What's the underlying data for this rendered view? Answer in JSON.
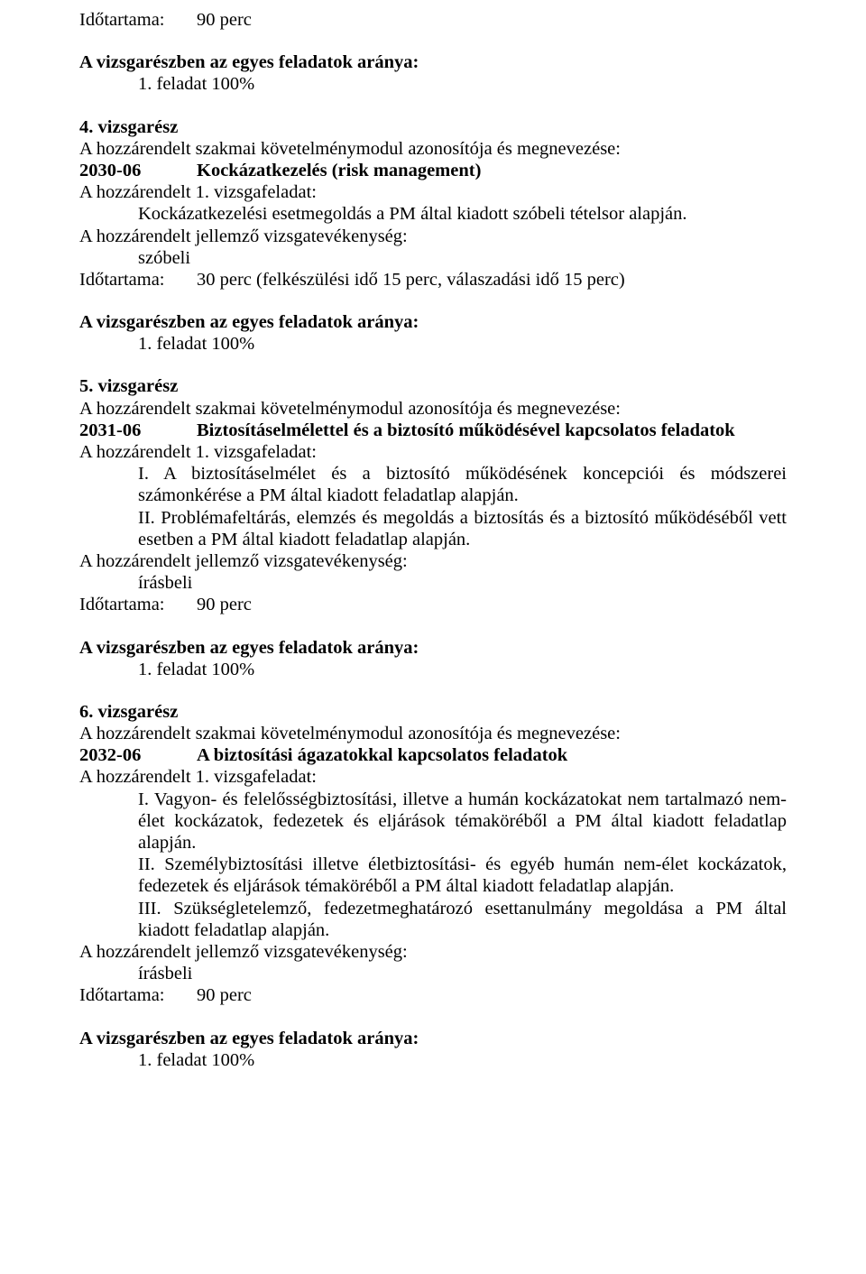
{
  "typography": {
    "font_family": "Times New Roman",
    "font_size_pt": 15,
    "text_color": "#000000",
    "background_color": "#ffffff"
  },
  "top": {
    "duration_label": "Időtartama:",
    "duration_value": "90 perc"
  },
  "ratio_heading": "A vizsgarészben az egyes feladatok aránya:",
  "ratio_line": "1. feladat 100%",
  "module_intro": "A hozzárendelt szakmai követelménymodul azonosítója és megnevezése:",
  "task_line": "A hozzárendelt 1. vizsgafeladat:",
  "activity_line": "A hozzárendelt jellemző vizsgatevékenység:",
  "activity_oral": "szóbeli",
  "activity_written": "írásbeli",
  "duration_label": "Időtartama:",
  "s4": {
    "heading": "4. vizsgarész",
    "code": "2030-06",
    "title": "Kockázatkezelés (risk management)",
    "task_desc": "Kockázatkezelési esetmegoldás a PM által kiadott szóbeli tételsor alapján.",
    "duration_value": "30 perc (felkészülési idő 15 perc, válaszadási idő 15 perc)"
  },
  "s5": {
    "heading": "5. vizsgarész",
    "code": "2031-06",
    "title": "Biztosításelmélettel és a biztosító működésével kapcsolatos feladatok",
    "task_desc_1": "I. A biztosításelmélet és a biztosító működésének koncepciói és módszerei számonkérése a PM által kiadott feladatlap alapján.",
    "task_desc_2": "II. Problémafeltárás, elemzés és megoldás a biztosítás és a biztosító működéséből vett esetben a PM által kiadott feladatlap alapján.",
    "duration_value": "90 perc"
  },
  "s6": {
    "heading": "6. vizsgarész",
    "code": "2032-06",
    "title": "A biztosítási ágazatokkal kapcsolatos feladatok",
    "task_desc_1": "I. Vagyon- és felelősségbiztosítási, illetve a humán kockázatokat nem tartalmazó nem-élet kockázatok, fedezetek és eljárások témaköréből a PM által kiadott feladatlap alapján.",
    "task_desc_2": "II. Személybiztosítási illetve életbiztosítási- és egyéb humán nem-élet kockázatok, fedezetek és eljárások témaköréből a PM által kiadott feladatlap alapján.",
    "task_desc_3": "III. Szükségletelemző, fedezetmeghatározó esettanulmány megoldása a PM által kiadott feladatlap alapján.",
    "duration_value": "90 perc"
  }
}
